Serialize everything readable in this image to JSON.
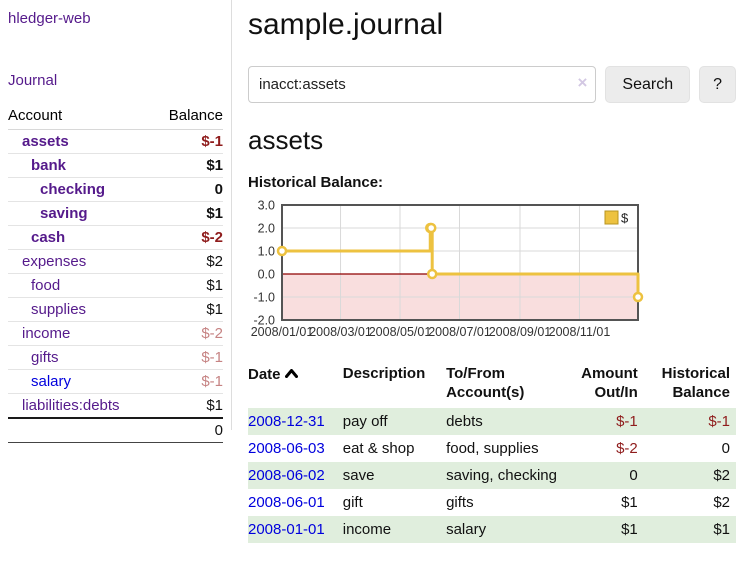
{
  "app": {
    "title": "hledger-web",
    "nav_journal": "Journal"
  },
  "sidebar": {
    "col_account": "Account",
    "col_balance": "Balance",
    "accounts": [
      {
        "name": "assets",
        "depth": 1,
        "bold": true,
        "balance": "$-1",
        "neg": "strong"
      },
      {
        "name": "bank",
        "depth": 2,
        "bold": true,
        "balance": "$1"
      },
      {
        "name": "checking",
        "depth": 3,
        "bold": true,
        "balance": "0"
      },
      {
        "name": "saving",
        "depth": 3,
        "bold": true,
        "balance": "$1"
      },
      {
        "name": "cash",
        "depth": 2,
        "bold": true,
        "balance": "$-2",
        "neg": "strong"
      },
      {
        "name": "expenses",
        "depth": 1,
        "bold": false,
        "balance": "$2"
      },
      {
        "name": "food",
        "depth": 2,
        "bold": false,
        "balance": "$1"
      },
      {
        "name": "supplies",
        "depth": 2,
        "bold": false,
        "balance": "$1"
      },
      {
        "name": "income",
        "depth": 1,
        "bold": false,
        "balance": "$-2",
        "neg": "soft"
      },
      {
        "name": "gifts",
        "depth": 2,
        "bold": false,
        "balance": "$-1",
        "neg": "soft"
      },
      {
        "name": "salary",
        "depth": 2,
        "bold": false,
        "balance": "$-1",
        "neg": "soft",
        "link_color": "blue"
      },
      {
        "name": "liabilities:debts",
        "depth": 1,
        "bold": false,
        "balance": "$1"
      }
    ],
    "total": "0"
  },
  "header": {
    "title": "sample.journal"
  },
  "search": {
    "value": "inacct:assets",
    "clear_icon": "×",
    "button_label": "Search",
    "help_label": "?"
  },
  "account_page": {
    "heading": "assets",
    "chart_label": "Historical Balance:"
  },
  "chart_data": {
    "type": "line",
    "step": true,
    "title": "Historical Balance",
    "series": [
      {
        "name": "$",
        "color": "#edc240",
        "points": [
          [
            "2008-01-01",
            1
          ],
          [
            "2008-06-01",
            2
          ],
          [
            "2008-06-02",
            2
          ],
          [
            "2008-06-03",
            0
          ],
          [
            "2008-12-31",
            -1
          ]
        ]
      }
    ],
    "xlim": [
      "2008-01-01",
      "2008-12-31"
    ],
    "ylim": [
      -2,
      3
    ],
    "x_ticks": [
      "2008/01/01",
      "2008/03/01",
      "2008/05/01",
      "2008/07/01",
      "2008/09/01",
      "2008/11/01"
    ],
    "y_ticks": [
      "3.0",
      "2.0",
      "1.0",
      "0.0",
      "-1.0",
      "-2.0"
    ],
    "grid": true,
    "legend_position": "top-right",
    "legend_label": "$",
    "negative_region_color": "#f9dede",
    "zero_line_color": "#8f0000",
    "border_color": "#545454",
    "grid_color": "#d9d9d9"
  },
  "register": {
    "col_date": "Date",
    "col_description": "Description",
    "col_accounts": "To/From Account(s)",
    "col_amount": "Amount Out/In",
    "col_balance": "Historical Balance",
    "rows": [
      {
        "date": "2008-12-31",
        "description": "pay off",
        "accounts": "debts",
        "amount": "$-1",
        "amount_neg": true,
        "balance": "$-1",
        "balance_neg": true
      },
      {
        "date": "2008-06-03",
        "description": "eat & shop",
        "accounts": "food, supplies",
        "amount": "$-2",
        "amount_neg": true,
        "balance": "0",
        "balance_neg": false
      },
      {
        "date": "2008-06-02",
        "description": "save",
        "accounts": "saving, checking",
        "amount": "0",
        "amount_neg": false,
        "balance": "$2",
        "balance_neg": false
      },
      {
        "date": "2008-06-01",
        "description": "gift",
        "accounts": "gifts",
        "amount": "$1",
        "amount_neg": false,
        "balance": "$2",
        "balance_neg": false
      },
      {
        "date": "2008-01-01",
        "description": "income",
        "accounts": "salary",
        "amount": "$1",
        "amount_neg": false,
        "balance": "$1",
        "balance_neg": false
      }
    ]
  }
}
